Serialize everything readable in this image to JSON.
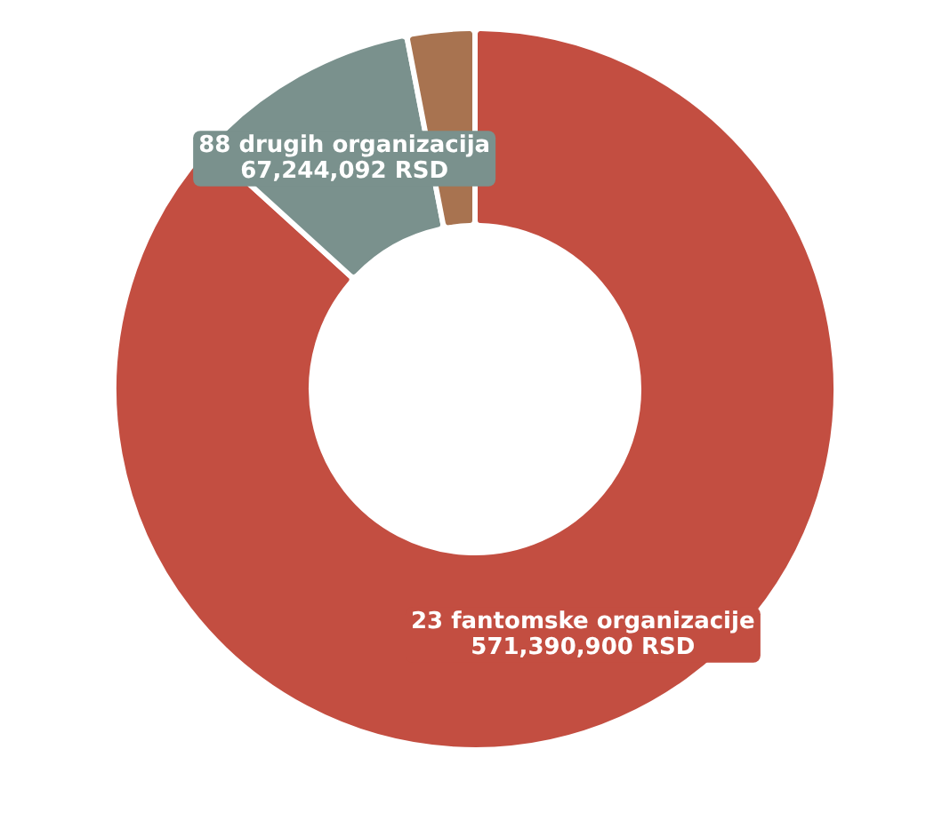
{
  "chart_data": {
    "type": "donut",
    "categories": [
      "23 fantomske organizacije",
      "88 drugih organizacija",
      null
    ],
    "values": [
      571390900,
      67244092,
      20000000
    ],
    "colors": [
      "#c34e41",
      "#7a918d",
      "#a87350"
    ],
    "value_labels": [
      "571,390,900 RSD",
      "67,244,092 RSD",
      null
    ]
  }
}
